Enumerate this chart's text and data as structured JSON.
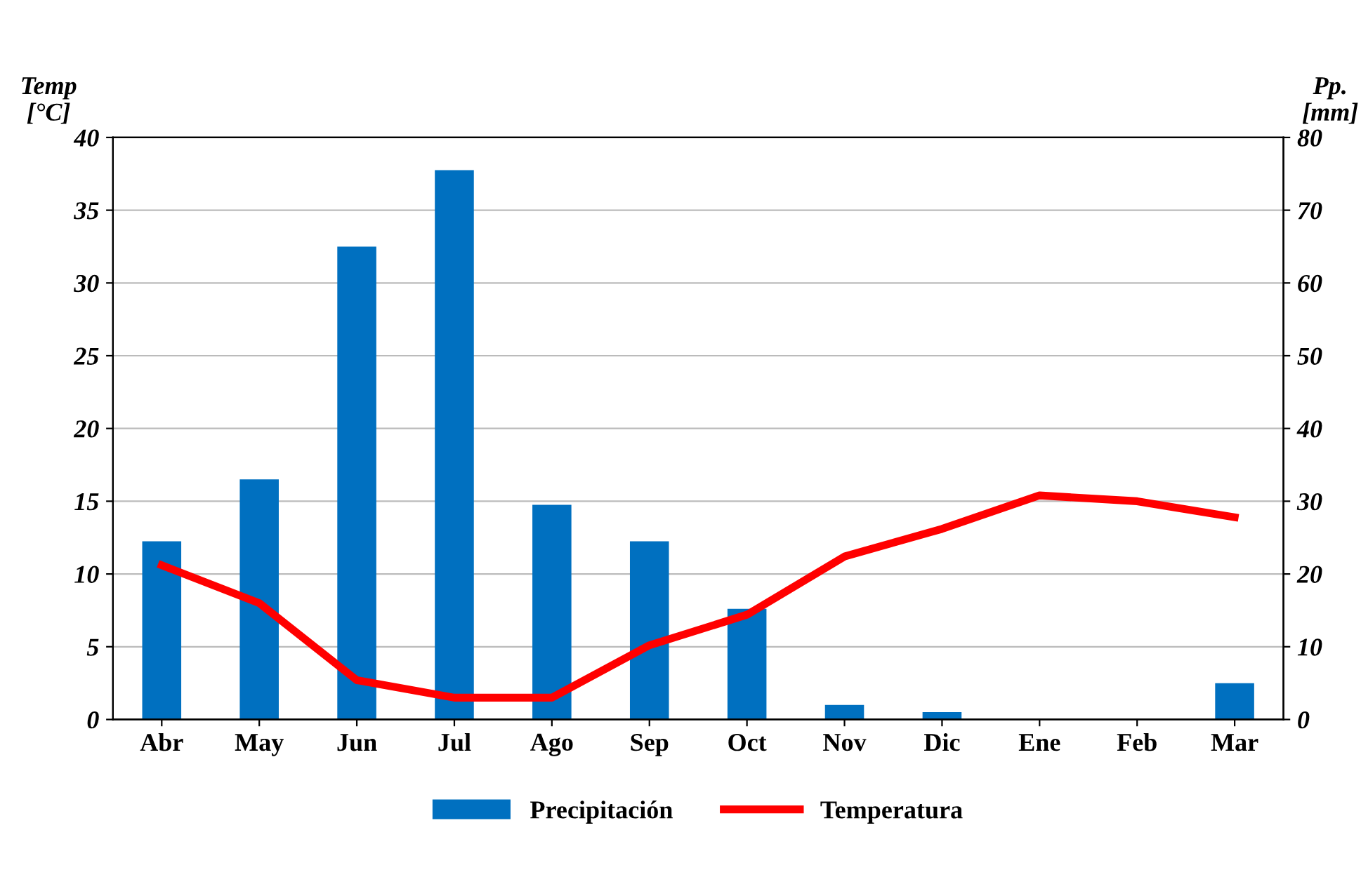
{
  "chart_data": {
    "type": "bar",
    "ylabel": "Temp\n[°C]",
    "y2label": "Pp.\n[mm]",
    "categories": [
      "Abr",
      "May",
      "Jun",
      "Jul",
      "Ago",
      "Sep",
      "Oct",
      "Nov",
      "Dic",
      "Ene",
      "Feb",
      "Mar"
    ],
    "series": [
      {
        "name": "Precipitación",
        "axis": "y2",
        "color": "#0070c0",
        "values": [
          24.5,
          33,
          65,
          75.5,
          29.5,
          24.5,
          15.2,
          2,
          1,
          0,
          0,
          5
        ]
      },
      {
        "name": "Temperatura",
        "type": "line",
        "axis": "y",
        "color": "#ff0000",
        "values": [
          10.6,
          8.0,
          2.7,
          1.5,
          1.5,
          5.1,
          7.2,
          11.2,
          13.1,
          15.4,
          15.0,
          13.9
        ]
      }
    ],
    "ylim": [
      0,
      40
    ],
    "yticks": [
      0,
      5,
      10,
      15,
      20,
      25,
      30,
      35,
      40
    ],
    "y2lim": [
      0,
      80
    ],
    "y2ticks": [
      0,
      10,
      20,
      30,
      40,
      50,
      60,
      70,
      80
    ],
    "grid": "y",
    "legend": "bottom",
    "marker": "none",
    "line_style": "solid"
  }
}
